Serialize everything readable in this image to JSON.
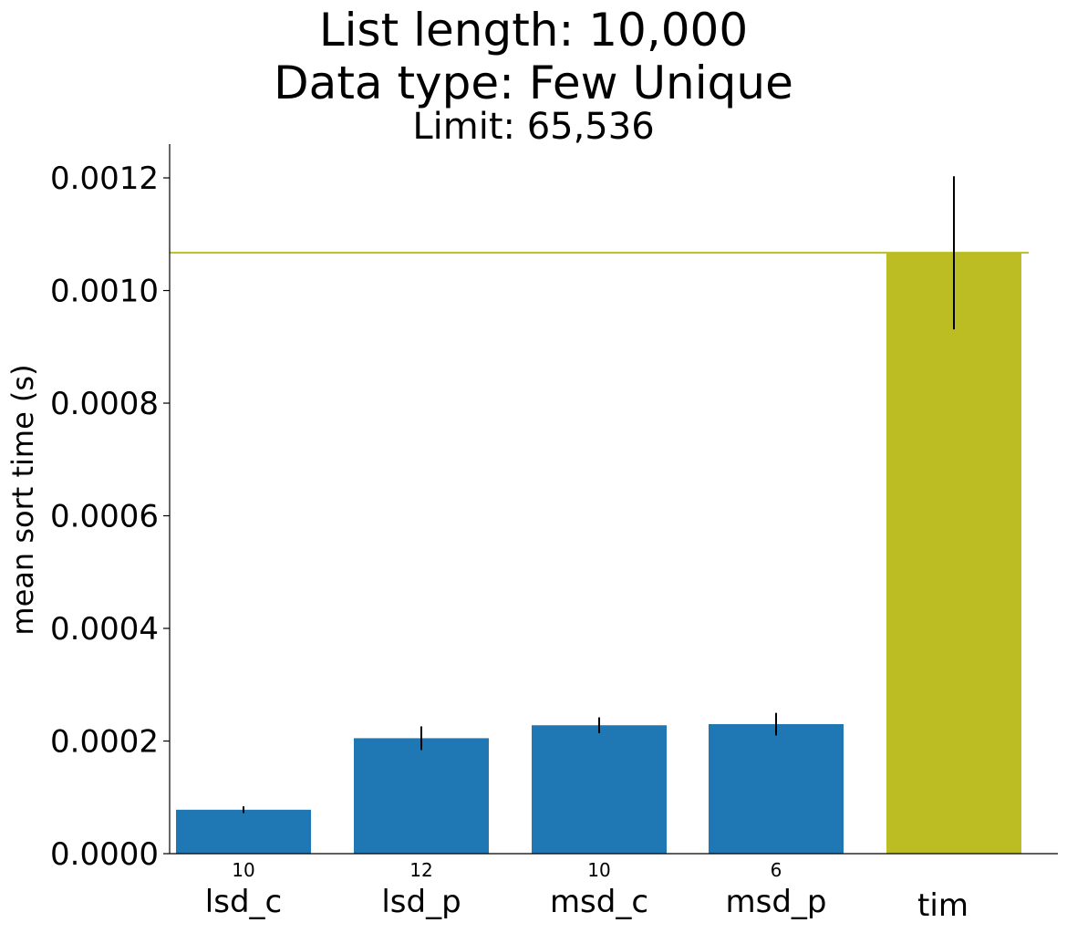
{
  "chart_data": {
    "type": "bar",
    "title_lines": [
      "List length: 10,000",
      "Data type: Few Unique"
    ],
    "subtitle": "Limit: 65,536",
    "ylabel": "mean sort time (s)",
    "xlabel": "",
    "ylim": [
      0,
      0.00126
    ],
    "yticks": [
      0.0,
      0.0002,
      0.0004,
      0.0006,
      0.0008,
      0.001,
      0.0012
    ],
    "ytick_labels": [
      "0.0000",
      "0.0002",
      "0.0004",
      "0.0006",
      "0.0008",
      "0.0010",
      "0.0012"
    ],
    "categories": [
      "lsd_c",
      "lsd_p",
      "msd_c",
      "msd_p",
      "tim"
    ],
    "values": [
      7.8e-05,
      0.000205,
      0.000228,
      0.00023,
      0.001067
    ],
    "error": [
      6e-06,
      2.1e-05,
      1.4e-05,
      2e-05,
      0.000136
    ],
    "bar_labels": [
      "10",
      "12",
      "10",
      "6",
      ""
    ],
    "bar_colors": [
      "#1f77b4",
      "#1f77b4",
      "#1f77b4",
      "#1f77b4",
      "#bcbd22"
    ],
    "reference_line": {
      "value": 0.001067,
      "color": "#bcbd22"
    },
    "grid": false,
    "legend": "none"
  }
}
